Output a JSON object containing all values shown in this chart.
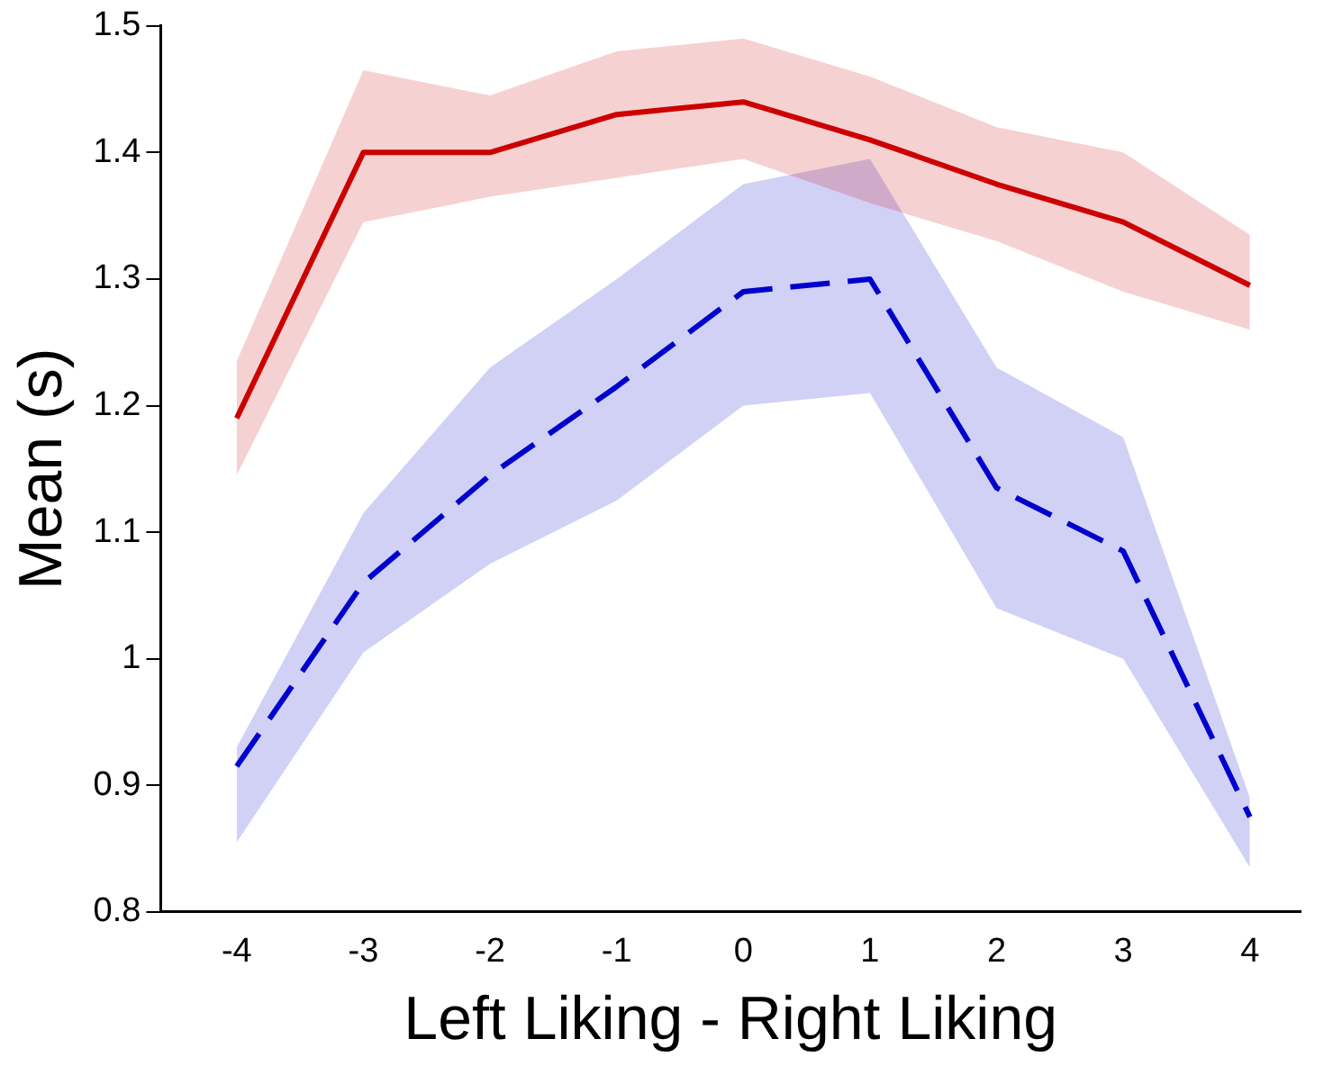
{
  "chart_data": {
    "type": "line",
    "xlabel": "Left Liking - Right Liking",
    "ylabel": "Mean (s)",
    "x": [
      -4,
      -3,
      -2,
      -1,
      0,
      1,
      2,
      3,
      4
    ],
    "series": [
      {
        "color": "#cc0000",
        "line_style": "solid",
        "values": [
          1.19,
          1.4,
          1.4,
          1.43,
          1.44,
          1.41,
          1.375,
          1.345,
          1.295
        ],
        "lower": [
          1.145,
          1.345,
          1.365,
          1.38,
          1.395,
          1.36,
          1.33,
          1.29,
          1.26
        ],
        "upper": [
          1.235,
          1.465,
          1.445,
          1.48,
          1.49,
          1.46,
          1.42,
          1.4,
          1.335
        ]
      },
      {
        "color": "#0000cc",
        "line_style": "dashed",
        "values": [
          0.915,
          1.06,
          1.145,
          1.215,
          1.29,
          1.3,
          1.135,
          1.085,
          0.875
        ],
        "lower": [
          0.855,
          1.005,
          1.075,
          1.125,
          1.2,
          1.21,
          1.04,
          1.0,
          0.835
        ],
        "upper": [
          0.93,
          1.115,
          1.23,
          1.3,
          1.375,
          1.395,
          1.23,
          1.175,
          0.89
        ]
      }
    ],
    "xlim": [
      -4.6,
      4.4
    ],
    "xticks": [
      -4,
      -3,
      -2,
      -1,
      0,
      1,
      2,
      3,
      4
    ],
    "ylim": [
      0.8,
      1.5
    ],
    "yticks": [
      0.8,
      0.9,
      1,
      1.1,
      1.2,
      1.3,
      1.4,
      1.5
    ],
    "grid": false,
    "legend": false,
    "marker": "none"
  }
}
